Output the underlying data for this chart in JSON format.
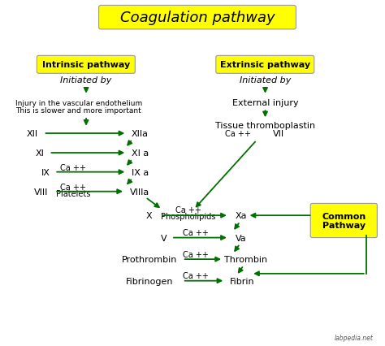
{
  "title": "Coagulation pathway",
  "title_fontsize": 14,
  "title_box_color": "#FFFF00",
  "background_color": "#FFFFFF",
  "arrow_color": "#007000",
  "text_color": "#000000",
  "label_box_color": "#FFFF00",
  "common_pathway_box_color": "#FFFF00",
  "intrinsic_label": "Intrinsic pathway",
  "extrinsic_label": "Extrinsic pathway",
  "common_pathway_label": "Common\nPathway",
  "watermark": "labpedia.net",
  "fs_base": 8.0,
  "fs_small": 7.0,
  "fs_title": 13
}
